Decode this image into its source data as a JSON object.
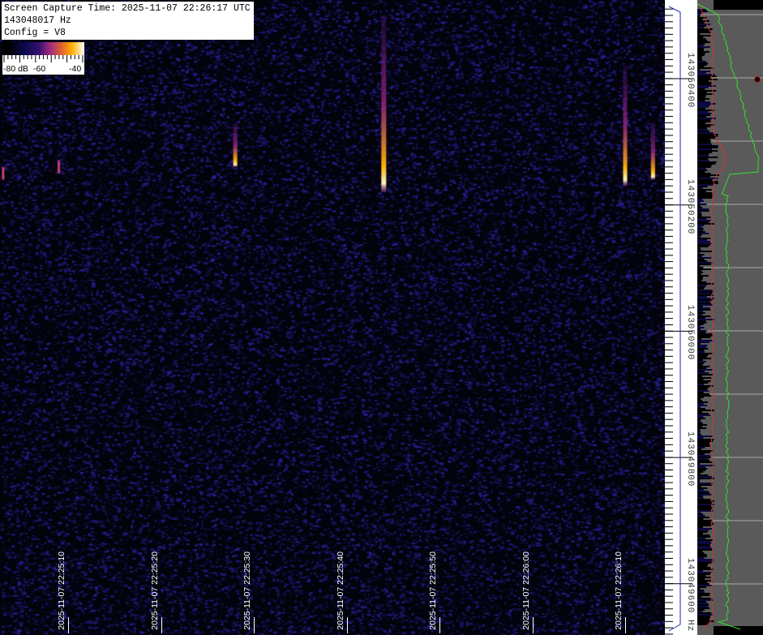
{
  "info": {
    "capture_time": "Screen Capture Time: 2025-11-07 22:26:17 UTC",
    "frequency": "143048017 Hz",
    "config": "Config = V8"
  },
  "color_scale": {
    "labels": [
      "-80 dB",
      "-60",
      "-40"
    ],
    "colors": [
      "#000000",
      "#0a0a50",
      "#3a1070",
      "#a02a80",
      "#e06030",
      "#ffb000",
      "#ffffff"
    ]
  },
  "chart_data": {
    "type": "heatmap",
    "title": "",
    "x_axis": {
      "orientation": "horizontal-time",
      "tick_labels": [
        "2025-11-07 22:25:10",
        "2025-11-07 22:25:20",
        "2025-11-07 22:25:30",
        "2025-11-07 22:25:40",
        "2025-11-07 22:25:50",
        "2025-11-07 22:26:00",
        "2025-11-07 22:26:10"
      ]
    },
    "y_axis": {
      "unit": "Hz",
      "tick_labels": [
        "143050400",
        "143050200",
        "143050000",
        "143049800",
        "143049600 Hz"
      ],
      "tick_values": [
        143050400,
        143050200,
        143050000,
        143049800,
        143049600
      ]
    },
    "colorbar_db_range": [
      -80,
      -40
    ],
    "signals": [
      {
        "time": "22:25:03",
        "freq_top": 143050260,
        "freq_bottom": 143050240,
        "intensity": "weak"
      },
      {
        "time": "22:25:09",
        "freq_top": 143050270,
        "freq_bottom": 143050250,
        "intensity": "weak"
      },
      {
        "time": "22:25:28",
        "freq_top": 143050330,
        "freq_bottom": 143050260,
        "intensity": "strong"
      },
      {
        "time": "22:25:44",
        "freq_top": 143050500,
        "freq_bottom": 143050220,
        "intensity": "very strong"
      },
      {
        "time": "22:26:10",
        "freq_top": 143050420,
        "freq_bottom": 143050230,
        "intensity": "strong"
      },
      {
        "time": "22:26:13",
        "freq_top": 143050330,
        "freq_bottom": 143050240,
        "intensity": "strong"
      }
    ]
  },
  "side_panel": {
    "colors": {
      "background": "#5a5a5a",
      "peak": "#e03030",
      "average": "#30e030",
      "bars": "#0a0a40"
    }
  }
}
